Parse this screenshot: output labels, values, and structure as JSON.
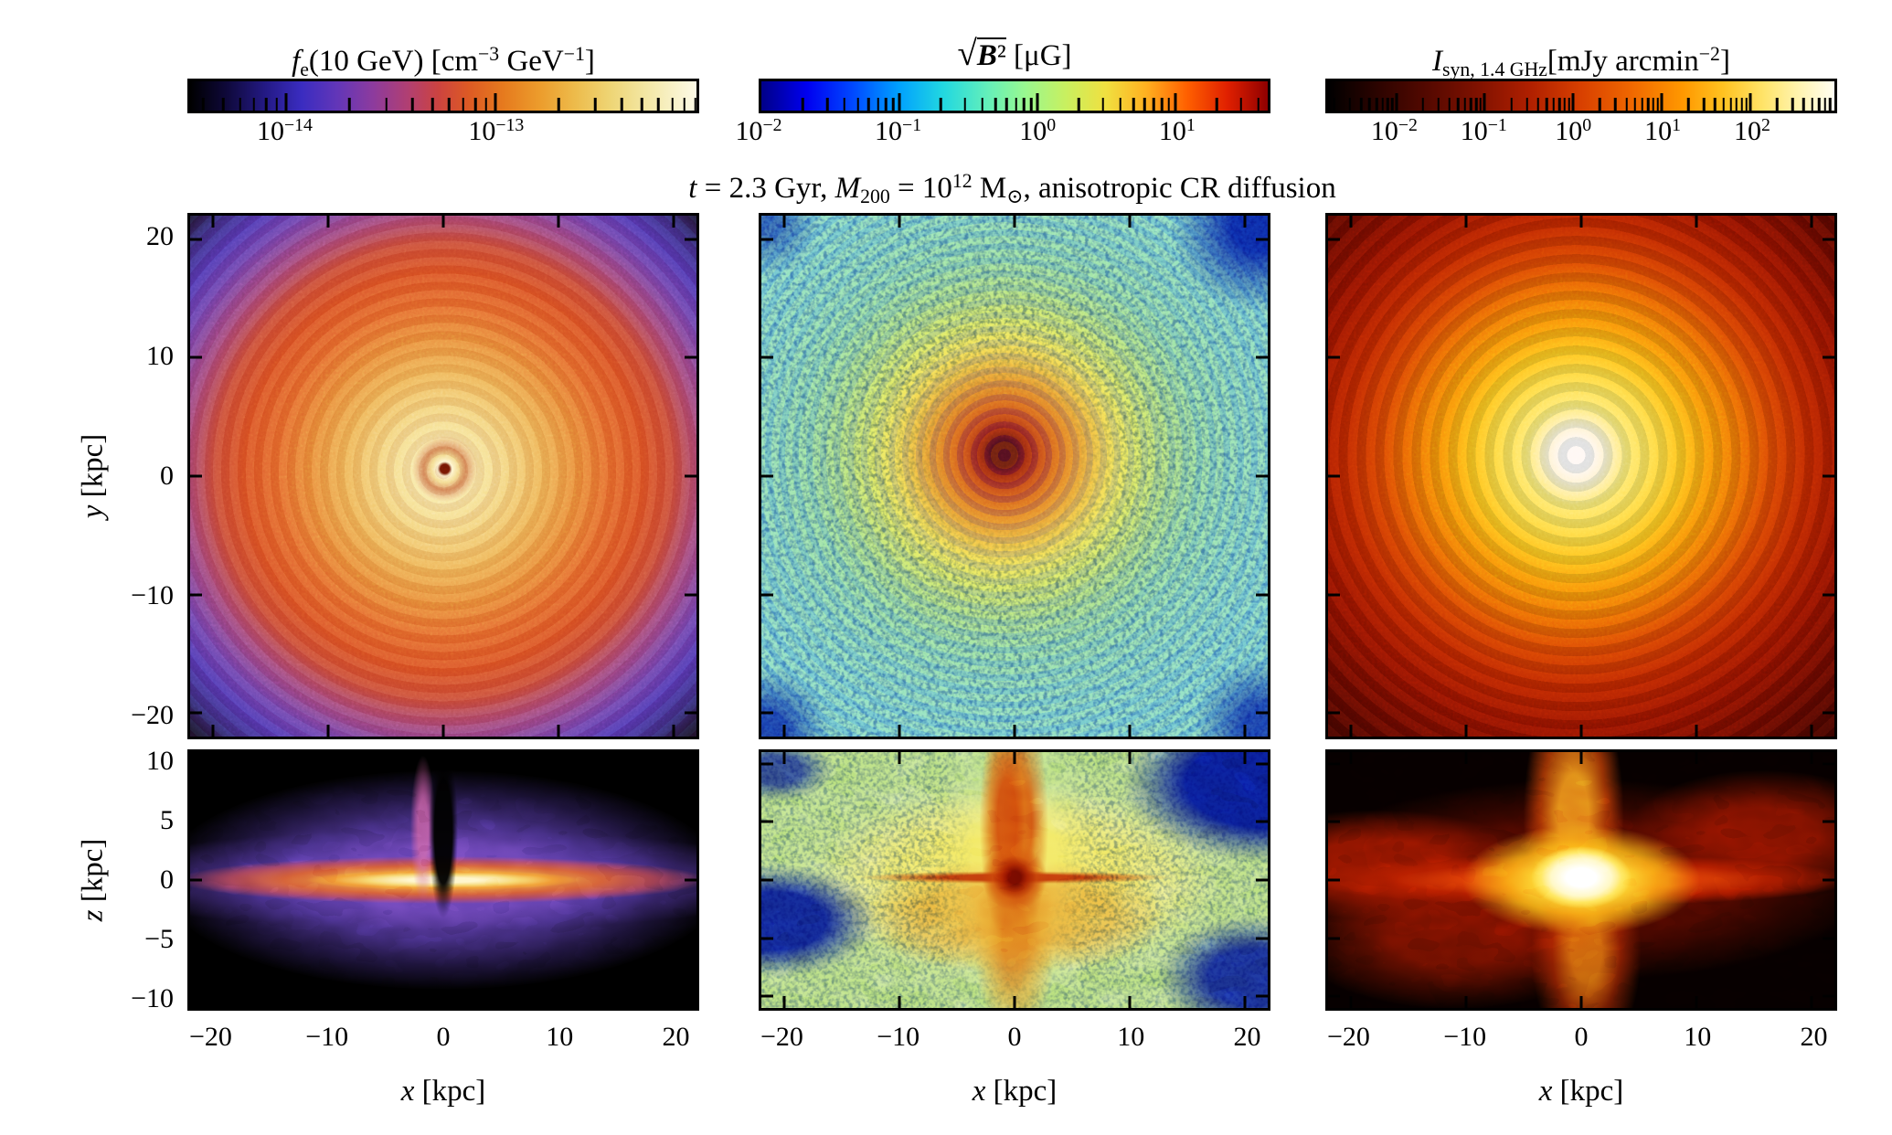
{
  "colors": {
    "background": "#ffffff",
    "frame": "#000000"
  },
  "main_title": {
    "plain": "t = 2.3 Gyr, M200 = 10^12 M⊙, anisotropic CR diffusion",
    "segments": [
      [
        "t",
        "i"
      ],
      [
        " = 2.3 Gyr, ",
        ""
      ],
      [
        "M",
        "i"
      ],
      [
        "200",
        "sub"
      ],
      [
        " = 10",
        ""
      ],
      [
        "12",
        "sup"
      ],
      [
        " M",
        ""
      ],
      [
        "⊙",
        "sub"
      ],
      [
        ", anisotropic CR diffusion",
        ""
      ]
    ]
  },
  "axes": {
    "x": {
      "label_plain": "x [kpc]",
      "label_segments": [
        [
          "x",
          "i"
        ],
        [
          " [kpc]",
          ""
        ]
      ],
      "min": -22,
      "max": 22,
      "ticks": [
        "−20",
        "−10",
        "0",
        "10",
        "20"
      ],
      "tick_values": [
        -20,
        -10,
        0,
        10,
        20
      ]
    },
    "y": {
      "label_plain": "y [kpc]",
      "label_segments": [
        [
          "y",
          "i"
        ],
        [
          " [kpc]",
          ""
        ]
      ],
      "min": -22,
      "max": 22,
      "ticks": [
        "20",
        "10",
        "0",
        "−10",
        "−20"
      ],
      "tick_values": [
        20,
        10,
        0,
        -10,
        -20
      ]
    },
    "z": {
      "label_plain": "z [kpc]",
      "label_segments": [
        [
          "z",
          "i"
        ],
        [
          " [kpc]",
          ""
        ]
      ],
      "min": -11,
      "max": 11,
      "ticks": [
        "10",
        "5",
        "0",
        "−5",
        "−10"
      ],
      "tick_values": [
        10,
        5,
        0,
        -5,
        -10
      ]
    }
  },
  "columns": [
    {
      "id": "fe",
      "colorbar": {
        "title_plain": "fe(10 GeV) [cm−3 GeV−1]",
        "title_segments": [
          [
            "f",
            "i"
          ],
          [
            "e",
            "sub"
          ],
          [
            "(10 GeV) [cm",
            ""
          ],
          [
            "−3",
            "sup"
          ],
          [
            " GeV",
            ""
          ],
          [
            "−1",
            "sup"
          ],
          [
            "]",
            ""
          ]
        ],
        "scale": "log",
        "log_min": -14.46,
        "log_max": -12.04,
        "tick_labels": [
          {
            "base": "10",
            "exp": "−14",
            "logv": -14
          },
          {
            "base": "10",
            "exp": "−13",
            "logv": -13
          }
        ],
        "stops": [
          [
            0,
            "#000000"
          ],
          [
            0.07,
            "#0e0838"
          ],
          [
            0.15,
            "#241a86"
          ],
          [
            0.22,
            "#3a2cc0"
          ],
          [
            0.29,
            "#6236b8"
          ],
          [
            0.36,
            "#8c3b9e"
          ],
          [
            0.43,
            "#b13f72"
          ],
          [
            0.49,
            "#cc4340"
          ],
          [
            0.55,
            "#dd5a24"
          ],
          [
            0.62,
            "#e67b1e"
          ],
          [
            0.69,
            "#ec9c2c"
          ],
          [
            0.76,
            "#edbb4b"
          ],
          [
            0.83,
            "#eed575"
          ],
          [
            0.9,
            "#f3e7a4"
          ],
          [
            1,
            "#fcfae6"
          ]
        ]
      }
    },
    {
      "id": "bfield",
      "colorbar": {
        "title_plain": "√B² [μG]",
        "title_segments": [
          [
            "√",
            "radical"
          ],
          [
            "B",
            "bi-ol"
          ],
          [
            "²",
            "ol"
          ],
          [
            " [μG]",
            ""
          ]
        ],
        "scale": "log",
        "log_min": -2.0,
        "log_max": 1.67,
        "tick_labels": [
          {
            "base": "10",
            "exp": "−2",
            "logv": -2
          },
          {
            "base": "10",
            "exp": "−1",
            "logv": -1
          },
          {
            "base": "10",
            "exp": "0",
            "logv": 0
          },
          {
            "base": "10",
            "exp": "1",
            "logv": 1
          }
        ],
        "stops": [
          [
            0,
            "#000088"
          ],
          [
            0.09,
            "#0000f0"
          ],
          [
            0.18,
            "#0048ff"
          ],
          [
            0.27,
            "#00a0ff"
          ],
          [
            0.36,
            "#22d8e0"
          ],
          [
            0.45,
            "#66f0b8"
          ],
          [
            0.52,
            "#98f890"
          ],
          [
            0.6,
            "#c8f060"
          ],
          [
            0.68,
            "#f0e040"
          ],
          [
            0.76,
            "#ffb020"
          ],
          [
            0.84,
            "#ff6000"
          ],
          [
            0.92,
            "#e02000"
          ],
          [
            1,
            "#900000"
          ]
        ]
      }
    },
    {
      "id": "isyn",
      "colorbar": {
        "title_plain": "Isyn, 1.4 GHz[mJy arcmin−2]",
        "title_segments": [
          [
            "I",
            "i"
          ],
          [
            "syn, 1.4 GHz",
            "sub"
          ],
          [
            "[mJy arcmin",
            ""
          ],
          [
            "−2",
            "sup"
          ],
          [
            "]",
            ""
          ]
        ],
        "scale": "log",
        "log_min": -2.77,
        "log_max": 2.95,
        "tick_labels": [
          {
            "base": "10",
            "exp": "−2",
            "logv": -2
          },
          {
            "base": "10",
            "exp": "−1",
            "logv": -1
          },
          {
            "base": "10",
            "exp": "0",
            "logv": 0
          },
          {
            "base": "10",
            "exp": "1",
            "logv": 1
          },
          {
            "base": "10",
            "exp": "2",
            "logv": 2
          }
        ],
        "stops": [
          [
            0,
            "#000000"
          ],
          [
            0.1,
            "#2d0400"
          ],
          [
            0.2,
            "#560900"
          ],
          [
            0.3,
            "#821200"
          ],
          [
            0.4,
            "#b02000"
          ],
          [
            0.5,
            "#d84000"
          ],
          [
            0.6,
            "#f06800"
          ],
          [
            0.7,
            "#ff9800"
          ],
          [
            0.78,
            "#ffc220"
          ],
          [
            0.86,
            "#ffe46a"
          ],
          [
            0.93,
            "#fff4b0"
          ],
          [
            1,
            "#fffef2"
          ]
        ]
      }
    }
  ],
  "chart_data": {
    "type": "heatmap",
    "suptitle": "t = 2.3 Gyr, M200 = 10^12 M⊙, anisotropic CR diffusion",
    "parameters": {
      "time_Gyr": 2.3,
      "M200_Msun": 1000000000000.0,
      "run": "anisotropic CR diffusion"
    },
    "layout": "3 columns (f_e, magnetic field, synchrotron intensity) x 2 rows (face-on x-y, edge-on x-z); log-scaled colorbar above each column",
    "panels": [
      {
        "id": "fe_faceon",
        "projection": "face-on",
        "quantity": "f_e(10 GeV)",
        "units": "cm^-3 GeV^-1",
        "x_range_kpc": [
          -22,
          22
        ],
        "y_range_kpc": [
          -22,
          22
        ],
        "x_ticks": [
          -20,
          -10,
          0,
          10,
          20
        ],
        "y_ticks": [
          20,
          10,
          0,
          -10,
          -20
        ],
        "scale": "log",
        "value_range": [
          3.5e-15,
          9e-13
        ],
        "colorbar_decade_labels": [
          "1e-14",
          "1e-13"
        ],
        "colormap": "black→blue→violet→red→orange→pale yellow",
        "structure": "face-on spiral disk: pale-yellow center, orange mid-disk, red ring, blue-violet outskirts, black corners, tiny bright spiral core with dark red nucleus"
      },
      {
        "id": "bfield_faceon",
        "projection": "face-on",
        "quantity": "sqrt(B^2)",
        "units": "μG",
        "x_range_kpc": [
          -22,
          22
        ],
        "y_range_kpc": [
          -22,
          22
        ],
        "x_ticks": [
          -20,
          -10,
          0,
          10,
          20
        ],
        "y_ticks": [
          20,
          10,
          0,
          -10,
          -20
        ],
        "scale": "log",
        "value_range": [
          0.01,
          47
        ],
        "colorbar_decade_labels": [
          "1e-2",
          "1e-1",
          "1e0",
          "1e1"
        ],
        "colormap": "jet (dark blue→blue→cyan→green→yellow→orange→red→dark red)",
        "structure": "green/cyan speckled disk with yellow spiral arcs and blue inter-arm speckles; orange-red swirl at center with dark-red core; dark-blue corners"
      },
      {
        "id": "isyn_faceon",
        "projection": "face-on",
        "quantity": "I_syn, 1.4 GHz",
        "units": "mJy arcmin^-2",
        "x_range_kpc": [
          -22,
          22
        ],
        "y_range_kpc": [
          -22,
          22
        ],
        "x_ticks": [
          -20,
          -10,
          0,
          10,
          20
        ],
        "y_ticks": [
          20,
          10,
          0,
          -10,
          -20
        ],
        "scale": "log",
        "value_range": [
          0.0017,
          900
        ],
        "colorbar_decade_labels": [
          "1e-2",
          "1e-1",
          "1e0",
          "1e1",
          "1e2"
        ],
        "colormap": "afmhot (black→dark red→red→orange→yellow→white)",
        "structure": "bright white nucleus, yellow inner swirl, red filamentary outer disk fading to black corners"
      },
      {
        "id": "fe_edgeon",
        "projection": "edge-on",
        "quantity": "f_e(10 GeV)",
        "units": "cm^-3 GeV^-1",
        "x_range_kpc": [
          -22,
          22
        ],
        "z_range_kpc": [
          -11,
          11
        ],
        "x_ticks": [
          -20,
          -10,
          0,
          10,
          20
        ],
        "z_ticks": [
          10,
          5,
          0,
          -5,
          -10
        ],
        "scale": "log",
        "value_range": [
          3.5e-15,
          9e-13
        ],
        "colormap": "black→blue→violet→red→orange→pale yellow",
        "structure": "thin yellow-orange disk at z=0 embedded in blobby purple halo on black background; dark central chimney and pink plume above center"
      },
      {
        "id": "bfield_edgeon",
        "projection": "edge-on",
        "quantity": "sqrt(B^2)",
        "units": "μG",
        "x_range_kpc": [
          -22,
          22
        ],
        "z_range_kpc": [
          -11,
          11
        ],
        "x_ticks": [
          -20,
          -10,
          0,
          10,
          20
        ],
        "z_ticks": [
          10,
          5,
          0,
          -5,
          -10
        ],
        "scale": "log",
        "value_range": [
          0.01,
          47
        ],
        "colormap": "jet",
        "structure": "yellow-green halo with cyan speckles and dark-blue voids; orange bipolar outflow column through center with dark-red core; thin speckled red disk line"
      },
      {
        "id": "isyn_edgeon",
        "projection": "edge-on",
        "quantity": "I_syn, 1.4 GHz",
        "units": "mJy arcmin^-2",
        "x_range_kpc": [
          -22,
          22
        ],
        "z_range_kpc": [
          -11,
          11
        ],
        "x_ticks": [
          -20,
          -10,
          0,
          10,
          20
        ],
        "z_ticks": [
          10,
          5,
          0,
          -5,
          -10
        ],
        "scale": "log",
        "value_range": [
          0.0017,
          900
        ],
        "colormap": "afmhot",
        "structure": "bright white/yellow nucleus with red disk band and orange bipolar plumes above/below on black background"
      }
    ]
  }
}
